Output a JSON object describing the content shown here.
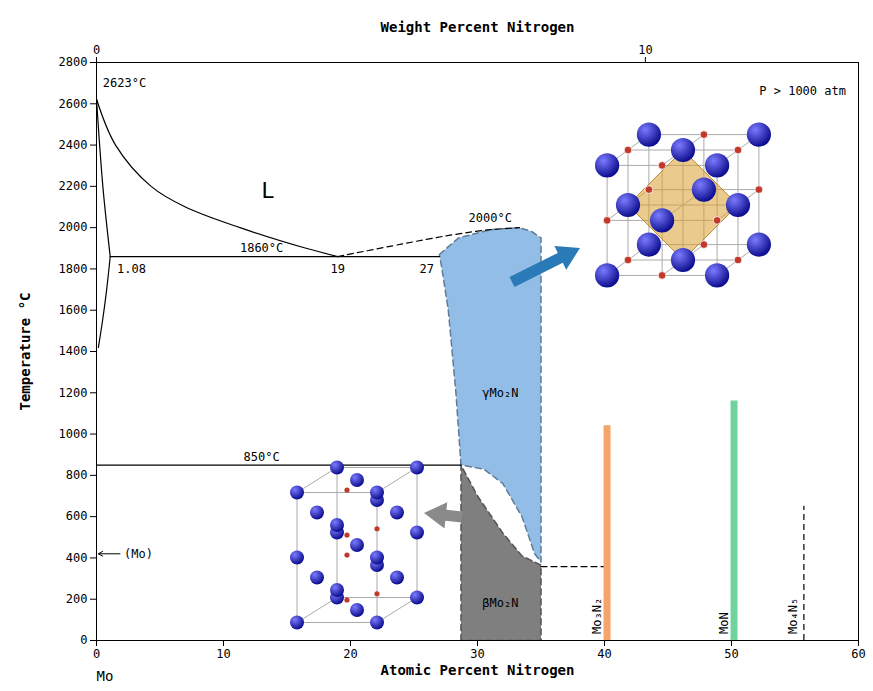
{
  "chart_data": {
    "type": "phase_diagram",
    "x_label": "Atomic Percent Nitrogen",
    "y_label": "Temperature °C",
    "x2_label": "Weight Percent Nitrogen",
    "x2ticks": [
      0,
      10
    ],
    "component": "Mo",
    "xlim": [
      0,
      60
    ],
    "xticks": [
      0,
      10,
      20,
      30,
      40,
      50,
      60
    ],
    "ylim": [
      0,
      2800
    ],
    "yticks": [
      0,
      200,
      400,
      600,
      800,
      1000,
      1200,
      1400,
      1600,
      1800,
      2000,
      2200,
      2400,
      2600,
      2800
    ],
    "grid": false,
    "regions": [
      {
        "color": "#92bde6",
        "line_style": "dashed",
        "points": [
          [
            27.0,
            1870
          ],
          [
            28.5,
            1950
          ],
          [
            31.0,
            1990
          ],
          [
            33.3,
            2000
          ],
          [
            34.3,
            1980
          ],
          [
            35.0,
            1950
          ],
          [
            35.0,
            380
          ],
          [
            34.5,
            420
          ],
          [
            33.5,
            600
          ],
          [
            32.0,
            760
          ],
          [
            30.5,
            830
          ],
          [
            28.7,
            850
          ],
          [
            28.3,
            1200
          ],
          [
            27.7,
            1600
          ],
          [
            27.2,
            1800
          ]
        ]
      },
      {
        "color": "#7f7f7f",
        "line_style": "dashed",
        "points": [
          [
            28.7,
            0
          ],
          [
            28.7,
            850
          ],
          [
            30.0,
            700
          ],
          [
            32.0,
            520
          ],
          [
            33.5,
            410
          ],
          [
            35.0,
            365
          ],
          [
            35.0,
            0
          ]
        ]
      }
    ],
    "lines": [
      {
        "line_style": "solid",
        "points": [
          [
            0,
            2623
          ],
          [
            1.5,
            2400
          ],
          [
            4.3,
            2200
          ],
          [
            7.0,
            2100
          ],
          [
            11.3,
            2000
          ],
          [
            16.5,
            1900
          ],
          [
            19,
            1860
          ]
        ]
      },
      {
        "line_style": "solid",
        "points": [
          [
            0,
            2623
          ],
          [
            0.5,
            2200
          ],
          [
            1.08,
            1860
          ]
        ]
      },
      {
        "line_style": "solid",
        "points": [
          [
            1.08,
            1860
          ],
          [
            0.8,
            1700
          ],
          [
            0.5,
            1560
          ],
          [
            0.15,
            1420
          ]
        ]
      },
      {
        "line_style": "solid",
        "points": [
          [
            1.08,
            1860
          ],
          [
            27,
            1860
          ]
        ]
      },
      {
        "line_style": "dashed",
        "points": [
          [
            19,
            1860
          ],
          [
            24,
            1920
          ],
          [
            28,
            1965
          ],
          [
            31,
            1990
          ],
          [
            33.3,
            2000
          ]
        ]
      },
      {
        "line_style": "solid",
        "points": [
          [
            0,
            850
          ],
          [
            28.7,
            850
          ]
        ]
      },
      {
        "line_style": "dashed",
        "points": [
          [
            35,
            358
          ],
          [
            40,
            358
          ]
        ]
      }
    ],
    "compounds": [
      {
        "name": "Mo₃N₂",
        "x": 40.2,
        "top": 1040,
        "color": "#f5a46a",
        "line_style": "solid"
      },
      {
        "name": "MoN",
        "x": 50.2,
        "top": 1160,
        "color": "#6fd39b",
        "line_style": "solid"
      },
      {
        "name": "Mo₄N₅",
        "x": 55.7,
        "top": 650,
        "color": "#000000",
        "line_style": "dashed"
      }
    ],
    "annotations": [
      {
        "text": "2623°C",
        "x": 2.2,
        "y": 2700
      },
      {
        "text": "L",
        "x": 13.5,
        "y": 2180
      },
      {
        "text": "1860°C",
        "x": 13,
        "y": 1900
      },
      {
        "text": "1.08",
        "x": 2.75,
        "y": 1800
      },
      {
        "text": "19",
        "x": 19,
        "y": 1800
      },
      {
        "text": "27",
        "x": 26.0,
        "y": 1800
      },
      {
        "text": "2000°C",
        "x": 31,
        "y": 2045
      },
      {
        "text": "850°C",
        "x": 13,
        "y": 890
      },
      {
        "text": "(Mo)",
        "x": 3.3,
        "y": 420,
        "marker": "arrow"
      },
      {
        "text": "γMo₂N",
        "x": 31.8,
        "y": 1200
      },
      {
        "text": "βMo₂N",
        "x": 31.8,
        "y": 180
      },
      {
        "text": "P > 1000 atm",
        "x": 55.6,
        "y": 2660
      }
    ]
  }
}
